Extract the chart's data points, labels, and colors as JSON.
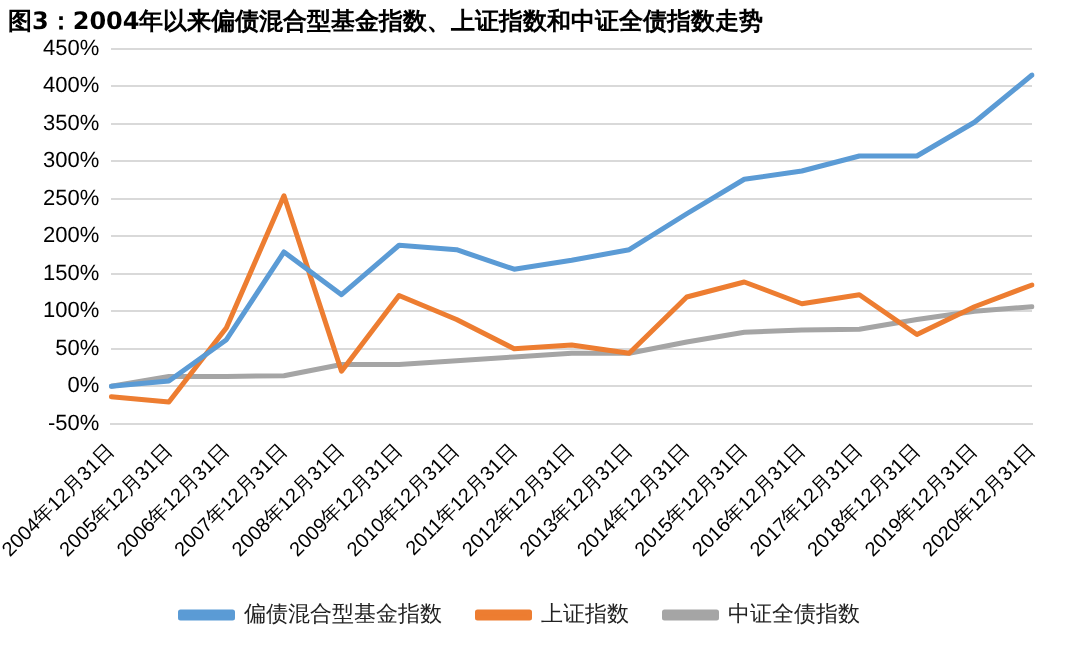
{
  "chart_data": {
    "type": "line",
    "title": "图3：2004年以来偏债混合型基金指数、上证指数和中证全债指数走势",
    "categories": [
      "2004年12月31日",
      "2005年12月31日",
      "2006年12月31日",
      "2007年12月31日",
      "2008年12月31日",
      "2009年12月31日",
      "2010年12月31日",
      "2011年12月31日",
      "2012年12月31日",
      "2013年12月31日",
      "2014年12月31日",
      "2015年12月31日",
      "2016年12月31日",
      "2017年12月31日",
      "2018年12月31日",
      "2019年12月31日",
      "2020年12月31日"
    ],
    "series": [
      {
        "name": "偏债混合型基金指数",
        "color": "#5b9bd5",
        "values": [
          0,
          7,
          62,
          179,
          122,
          188,
          182,
          156,
          168,
          182,
          230,
          276,
          287,
          307,
          307,
          352,
          415
        ]
      },
      {
        "name": "上证指数",
        "color": "#ed7d31",
        "values": [
          -14,
          -21,
          78,
          254,
          20,
          121,
          89,
          50,
          55,
          44,
          119,
          139,
          110,
          122,
          69,
          106,
          135
        ]
      },
      {
        "name": "中证全债指数",
        "color": "#a5a5a5",
        "values": [
          0,
          13,
          13,
          14,
          29,
          29,
          34,
          39,
          44,
          44,
          59,
          72,
          75,
          76,
          89,
          100,
          106
        ]
      }
    ],
    "ylim": [
      -50,
      450
    ],
    "yticks": [
      {
        "value": -50,
        "label": "-50%"
      },
      {
        "value": 0,
        "label": "0%"
      },
      {
        "value": 50,
        "label": "50%"
      },
      {
        "value": 100,
        "label": "100%"
      },
      {
        "value": 150,
        "label": "150%"
      },
      {
        "value": 200,
        "label": "200%"
      },
      {
        "value": 250,
        "label": "250%"
      },
      {
        "value": 300,
        "label": "300%"
      },
      {
        "value": 350,
        "label": "350%"
      },
      {
        "value": 400,
        "label": "400%"
      },
      {
        "value": 450,
        "label": "450%"
      }
    ],
    "grid": "y",
    "legend": "bottom",
    "marker": "none",
    "line_style": "solid"
  }
}
